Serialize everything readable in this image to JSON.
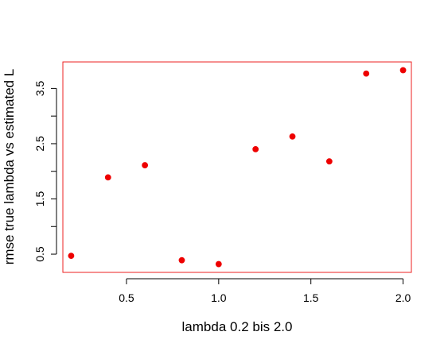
{
  "chart_data": {
    "type": "scatter",
    "title": "",
    "xlabel": "lambda 0.2 bis 2.0",
    "ylabel": "rmse true lambda  vs  estimated L",
    "xlim": [
      0.155,
      2.045
    ],
    "ylim": [
      0.17,
      3.98
    ],
    "x_ticks": [
      0.5,
      1.0,
      1.5,
      2.0
    ],
    "x_tick_labels": [
      "0.5",
      "1.0",
      "1.5",
      "2.0"
    ],
    "y_ticks": [
      0.5,
      1.0,
      1.5,
      2.0,
      2.5,
      3.0,
      3.5
    ],
    "y_tick_labels": [
      "0.5",
      "",
      "1.5",
      "",
      "2.5",
      "",
      "3.5"
    ],
    "grid": false,
    "legend": "none",
    "point_color": "#ee0000",
    "box_color": "#ee2222",
    "axis_color": "#000000",
    "points": [
      {
        "x": 0.2,
        "y": 0.47
      },
      {
        "x": 0.4,
        "y": 1.89
      },
      {
        "x": 0.6,
        "y": 2.11
      },
      {
        "x": 0.8,
        "y": 0.39
      },
      {
        "x": 1.0,
        "y": 0.32
      },
      {
        "x": 1.2,
        "y": 2.4
      },
      {
        "x": 1.4,
        "y": 2.63
      },
      {
        "x": 1.6,
        "y": 2.18
      },
      {
        "x": 1.8,
        "y": 3.77
      },
      {
        "x": 2.0,
        "y": 3.83
      }
    ]
  }
}
